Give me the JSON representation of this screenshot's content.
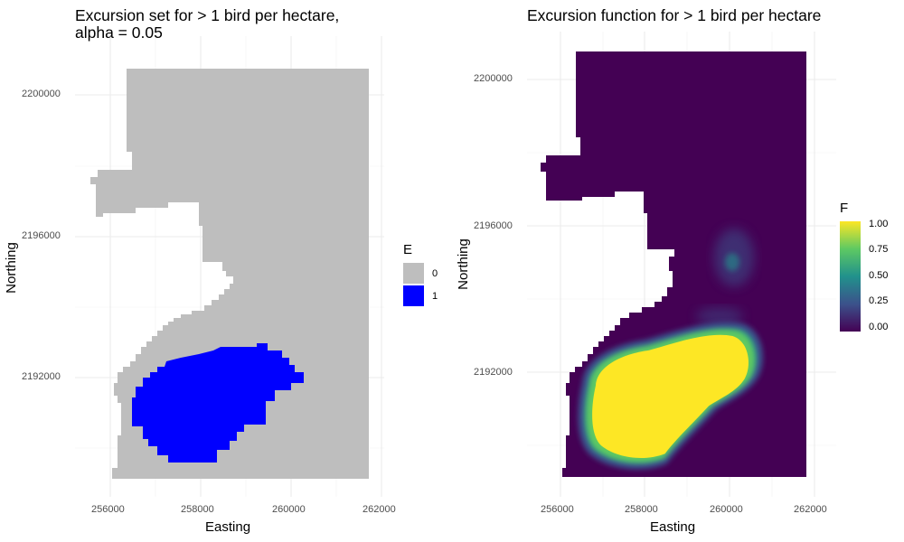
{
  "chart_data": [
    {
      "type": "heatmap",
      "title_line1": "Excursion set for > 1 bird per hectare,",
      "title_line2": "alpha = 0.05",
      "xlabel": "Easting",
      "ylabel": "Northing",
      "x_ticks": [
        "256000",
        "258000",
        "260000",
        "262000"
      ],
      "y_ticks": [
        "2200000",
        "2196000",
        "2192000"
      ],
      "xlim": [
        255500,
        262200
      ],
      "ylim": [
        2189500,
        2201300
      ],
      "grid": true,
      "legend": {
        "title": "E",
        "position": "right",
        "entries": [
          {
            "label": "0",
            "color": "#bebebe"
          },
          {
            "label": "1",
            "color": "#0000ff"
          }
        ]
      },
      "regions": {
        "excursion_set_value_1": "Compact blob centred near Easting 258300, Northing 2191800",
        "domain_value_0": "Remainder of survey domain"
      }
    },
    {
      "type": "heatmap",
      "title": "Excursion function for > 1 bird per hectare",
      "xlabel": "Easting",
      "ylabel": "Northing",
      "x_ticks": [
        "256000",
        "258000",
        "260000",
        "262000"
      ],
      "y_ticks": [
        "2200000",
        "2196000",
        "2192000"
      ],
      "xlim": [
        255500,
        262200
      ],
      "ylim": [
        2189500,
        2201300
      ],
      "grid": true,
      "colorscale": "viridis",
      "legend": {
        "title": "F",
        "position": "right",
        "ticks": [
          "1.00",
          "0.75",
          "0.50",
          "0.25",
          "0.00"
        ],
        "range": [
          0,
          1
        ]
      }
    }
  ]
}
